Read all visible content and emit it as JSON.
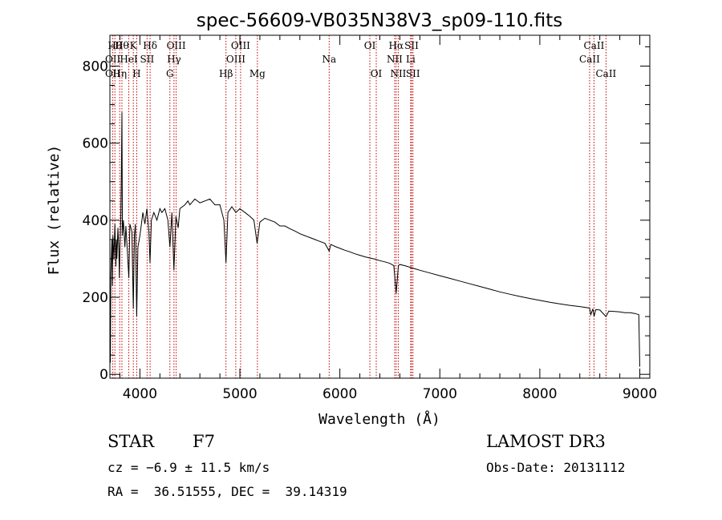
{
  "chart_data": {
    "type": "line",
    "title": "spec-56609-VB035N38V3_sp09-110.fits",
    "xlabel": "Wavelength (Å)",
    "ylabel": "Flux (relative)",
    "xlim": [
      3700,
      9100
    ],
    "ylim": [
      -10,
      880
    ],
    "x_ticks": [
      4000,
      5000,
      6000,
      7000,
      8000,
      9000
    ],
    "x_tick_labels": [
      "4000",
      "5000",
      "6000",
      "7000",
      "8000",
      "9000"
    ],
    "y_ticks": [
      0,
      200,
      400,
      600,
      800
    ],
    "y_tick_labels": [
      "0",
      "200",
      "400",
      "600",
      "800"
    ],
    "series": [
      {
        "name": "spectrum",
        "points": [
          [
            3700,
            80
          ],
          [
            3705,
            30
          ],
          [
            3710,
            260
          ],
          [
            3720,
            350
          ],
          [
            3725,
            230
          ],
          [
            3730,
            360
          ],
          [
            3740,
            300
          ],
          [
            3750,
            390
          ],
          [
            3760,
            280
          ],
          [
            3765,
            350
          ],
          [
            3770,
            300
          ],
          [
            3780,
            380
          ],
          [
            3790,
            320
          ],
          [
            3795,
            250
          ],
          [
            3800,
            330
          ],
          [
            3808,
            400
          ],
          [
            3815,
            520
          ],
          [
            3820,
            680
          ],
          [
            3825,
            360
          ],
          [
            3835,
            400
          ],
          [
            3850,
            330
          ],
          [
            3860,
            385
          ],
          [
            3870,
            340
          ],
          [
            3889,
            250
          ],
          [
            3900,
            390
          ],
          [
            3920,
            370
          ],
          [
            3934,
            170
          ],
          [
            3945,
            360
          ],
          [
            3955,
            390
          ],
          [
            3968,
            150
          ],
          [
            3980,
            330
          ],
          [
            4000,
            360
          ],
          [
            4020,
            400
          ],
          [
            4030,
            420
          ],
          [
            4050,
            390
          ],
          [
            4070,
            430
          ],
          [
            4090,
            370
          ],
          [
            4101,
            290
          ],
          [
            4115,
            400
          ],
          [
            4140,
            420
          ],
          [
            4170,
            400
          ],
          [
            4200,
            430
          ],
          [
            4220,
            420
          ],
          [
            4250,
            430
          ],
          [
            4280,
            400
          ],
          [
            4300,
            330
          ],
          [
            4320,
            420
          ],
          [
            4340,
            270
          ],
          [
            4360,
            410
          ],
          [
            4383,
            380
          ],
          [
            4400,
            430
          ],
          [
            4450,
            440
          ],
          [
            4480,
            450
          ],
          [
            4500,
            440
          ],
          [
            4550,
            455
          ],
          [
            4600,
            445
          ],
          [
            4650,
            450
          ],
          [
            4700,
            455
          ],
          [
            4750,
            440
          ],
          [
            4800,
            440
          ],
          [
            4840,
            400
          ],
          [
            4861,
            290
          ],
          [
            4880,
            420
          ],
          [
            4920,
            435
          ],
          [
            4960,
            420
          ],
          [
            5000,
            430
          ],
          [
            5050,
            420
          ],
          [
            5100,
            410
          ],
          [
            5140,
            400
          ],
          [
            5172,
            340
          ],
          [
            5183,
            360
          ],
          [
            5200,
            395
          ],
          [
            5250,
            405
          ],
          [
            5300,
            400
          ],
          [
            5350,
            395
          ],
          [
            5400,
            385
          ],
          [
            5450,
            385
          ],
          [
            5500,
            378
          ],
          [
            5550,
            372
          ],
          [
            5600,
            365
          ],
          [
            5650,
            360
          ],
          [
            5700,
            355
          ],
          [
            5750,
            350
          ],
          [
            5800,
            345
          ],
          [
            5850,
            340
          ],
          [
            5893,
            320
          ],
          [
            5910,
            337
          ],
          [
            5950,
            332
          ],
          [
            6000,
            327
          ],
          [
            6050,
            322
          ],
          [
            6100,
            318
          ],
          [
            6150,
            313
          ],
          [
            6200,
            309
          ],
          [
            6250,
            305
          ],
          [
            6300,
            302
          ],
          [
            6350,
            299
          ],
          [
            6400,
            295
          ],
          [
            6450,
            292
          ],
          [
            6500,
            288
          ],
          [
            6540,
            282
          ],
          [
            6563,
            210
          ],
          [
            6585,
            282
          ],
          [
            6600,
            285
          ],
          [
            6650,
            282
          ],
          [
            6700,
            278
          ],
          [
            6750,
            274
          ],
          [
            6800,
            270
          ],
          [
            6900,
            263
          ],
          [
            7000,
            256
          ],
          [
            7100,
            249
          ],
          [
            7200,
            242
          ],
          [
            7300,
            235
          ],
          [
            7400,
            228
          ],
          [
            7500,
            221
          ],
          [
            7600,
            214
          ],
          [
            7700,
            208
          ],
          [
            7800,
            202
          ],
          [
            7900,
            197
          ],
          [
            8000,
            192
          ],
          [
            8100,
            187
          ],
          [
            8200,
            183
          ],
          [
            8300,
            179
          ],
          [
            8400,
            176
          ],
          [
            8498,
            172
          ],
          [
            8510,
            155
          ],
          [
            8530,
            170
          ],
          [
            8542,
            150
          ],
          [
            8560,
            168
          ],
          [
            8600,
            167
          ],
          [
            8662,
            150
          ],
          [
            8690,
            164
          ],
          [
            8750,
            163
          ],
          [
            8800,
            162
          ],
          [
            8850,
            160
          ],
          [
            8900,
            160
          ],
          [
            8950,
            158
          ],
          [
            8990,
            155
          ],
          [
            9000,
            20
          ]
        ]
      }
    ],
    "line_markers": [
      {
        "wavelength": 3729,
        "labels": [
          {
            "text": "OII",
            "row": 1
          },
          {
            "text": "OII",
            "row": 2
          }
        ]
      },
      {
        "wavelength": 3750,
        "labels": [
          {
            "text": "Hθ",
            "row": 0
          }
        ]
      },
      {
        "wavelength": 3798,
        "labels": [
          {
            "text": "Hη",
            "row": 2
          }
        ]
      },
      {
        "wavelength": 3820,
        "labels": [
          {
            "text": "Hθ",
            "row": 0
          }
        ]
      },
      {
        "wavelength": 3889,
        "labels": [
          {
            "text": "HeI",
            "row": 1
          }
        ]
      },
      {
        "wavelength": 3934,
        "labels": [
          {
            "text": "K",
            "row": 0
          }
        ]
      },
      {
        "wavelength": 3968,
        "labels": [
          {
            "text": "H",
            "row": 2
          }
        ]
      },
      {
        "wavelength": 4072,
        "labels": [
          {
            "text": "SII",
            "row": 1
          }
        ]
      },
      {
        "wavelength": 4102,
        "labels": [
          {
            "text": "Hδ",
            "row": 0
          }
        ]
      },
      {
        "wavelength": 4300,
        "labels": [
          {
            "text": "G",
            "row": 2
          }
        ]
      },
      {
        "wavelength": 4341,
        "labels": [
          {
            "text": "Hγ",
            "row": 1
          }
        ]
      },
      {
        "wavelength": 4363,
        "labels": [
          {
            "text": "OIII",
            "row": 0
          }
        ]
      },
      {
        "wavelength": 4861,
        "labels": [
          {
            "text": "Hβ",
            "row": 2
          }
        ]
      },
      {
        "wavelength": 4959,
        "labels": [
          {
            "text": "OIII",
            "row": 1
          }
        ]
      },
      {
        "wavelength": 5007,
        "labels": [
          {
            "text": "OIII",
            "row": 0
          }
        ]
      },
      {
        "wavelength": 5175,
        "labels": [
          {
            "text": "Mg",
            "row": 2
          }
        ]
      },
      {
        "wavelength": 5893,
        "labels": [
          {
            "text": "Na",
            "row": 1
          }
        ]
      },
      {
        "wavelength": 6300,
        "labels": [
          {
            "text": "OI",
            "row": 0
          }
        ]
      },
      {
        "wavelength": 6364,
        "labels": [
          {
            "text": "OI",
            "row": 2
          }
        ]
      },
      {
        "wavelength": 6548,
        "labels": [
          {
            "text": "NII",
            "row": 1
          }
        ]
      },
      {
        "wavelength": 6563,
        "labels": [
          {
            "text": "Hα",
            "row": 0
          }
        ]
      },
      {
        "wavelength": 6584,
        "labels": [
          {
            "text": "NII",
            "row": 2
          }
        ]
      },
      {
        "wavelength": 6708,
        "labels": [
          {
            "text": "Li",
            "row": 1
          }
        ]
      },
      {
        "wavelength": 6717,
        "labels": [
          {
            "text": "SII",
            "row": 0
          }
        ]
      },
      {
        "wavelength": 6731,
        "labels": [
          {
            "text": "SII",
            "row": 2
          }
        ]
      },
      {
        "wavelength": 8498,
        "labels": [
          {
            "text": "CaII",
            "row": 1
          }
        ]
      },
      {
        "wavelength": 8542,
        "labels": [
          {
            "text": "CaII",
            "row": 0
          }
        ]
      },
      {
        "wavelength": 8662,
        "labels": [
          {
            "text": "CaII",
            "row": 2
          }
        ]
      }
    ],
    "line_marker_color": "#c00000"
  },
  "info": {
    "object_class": "STAR",
    "subclass": "F7",
    "survey": "LAMOST DR3",
    "cz": "cz = −6.9 ± 11.5 km/s",
    "obs_date": "Obs-Date: 20131112",
    "coords": "RA =  36.51555, DEC =  39.14319"
  }
}
